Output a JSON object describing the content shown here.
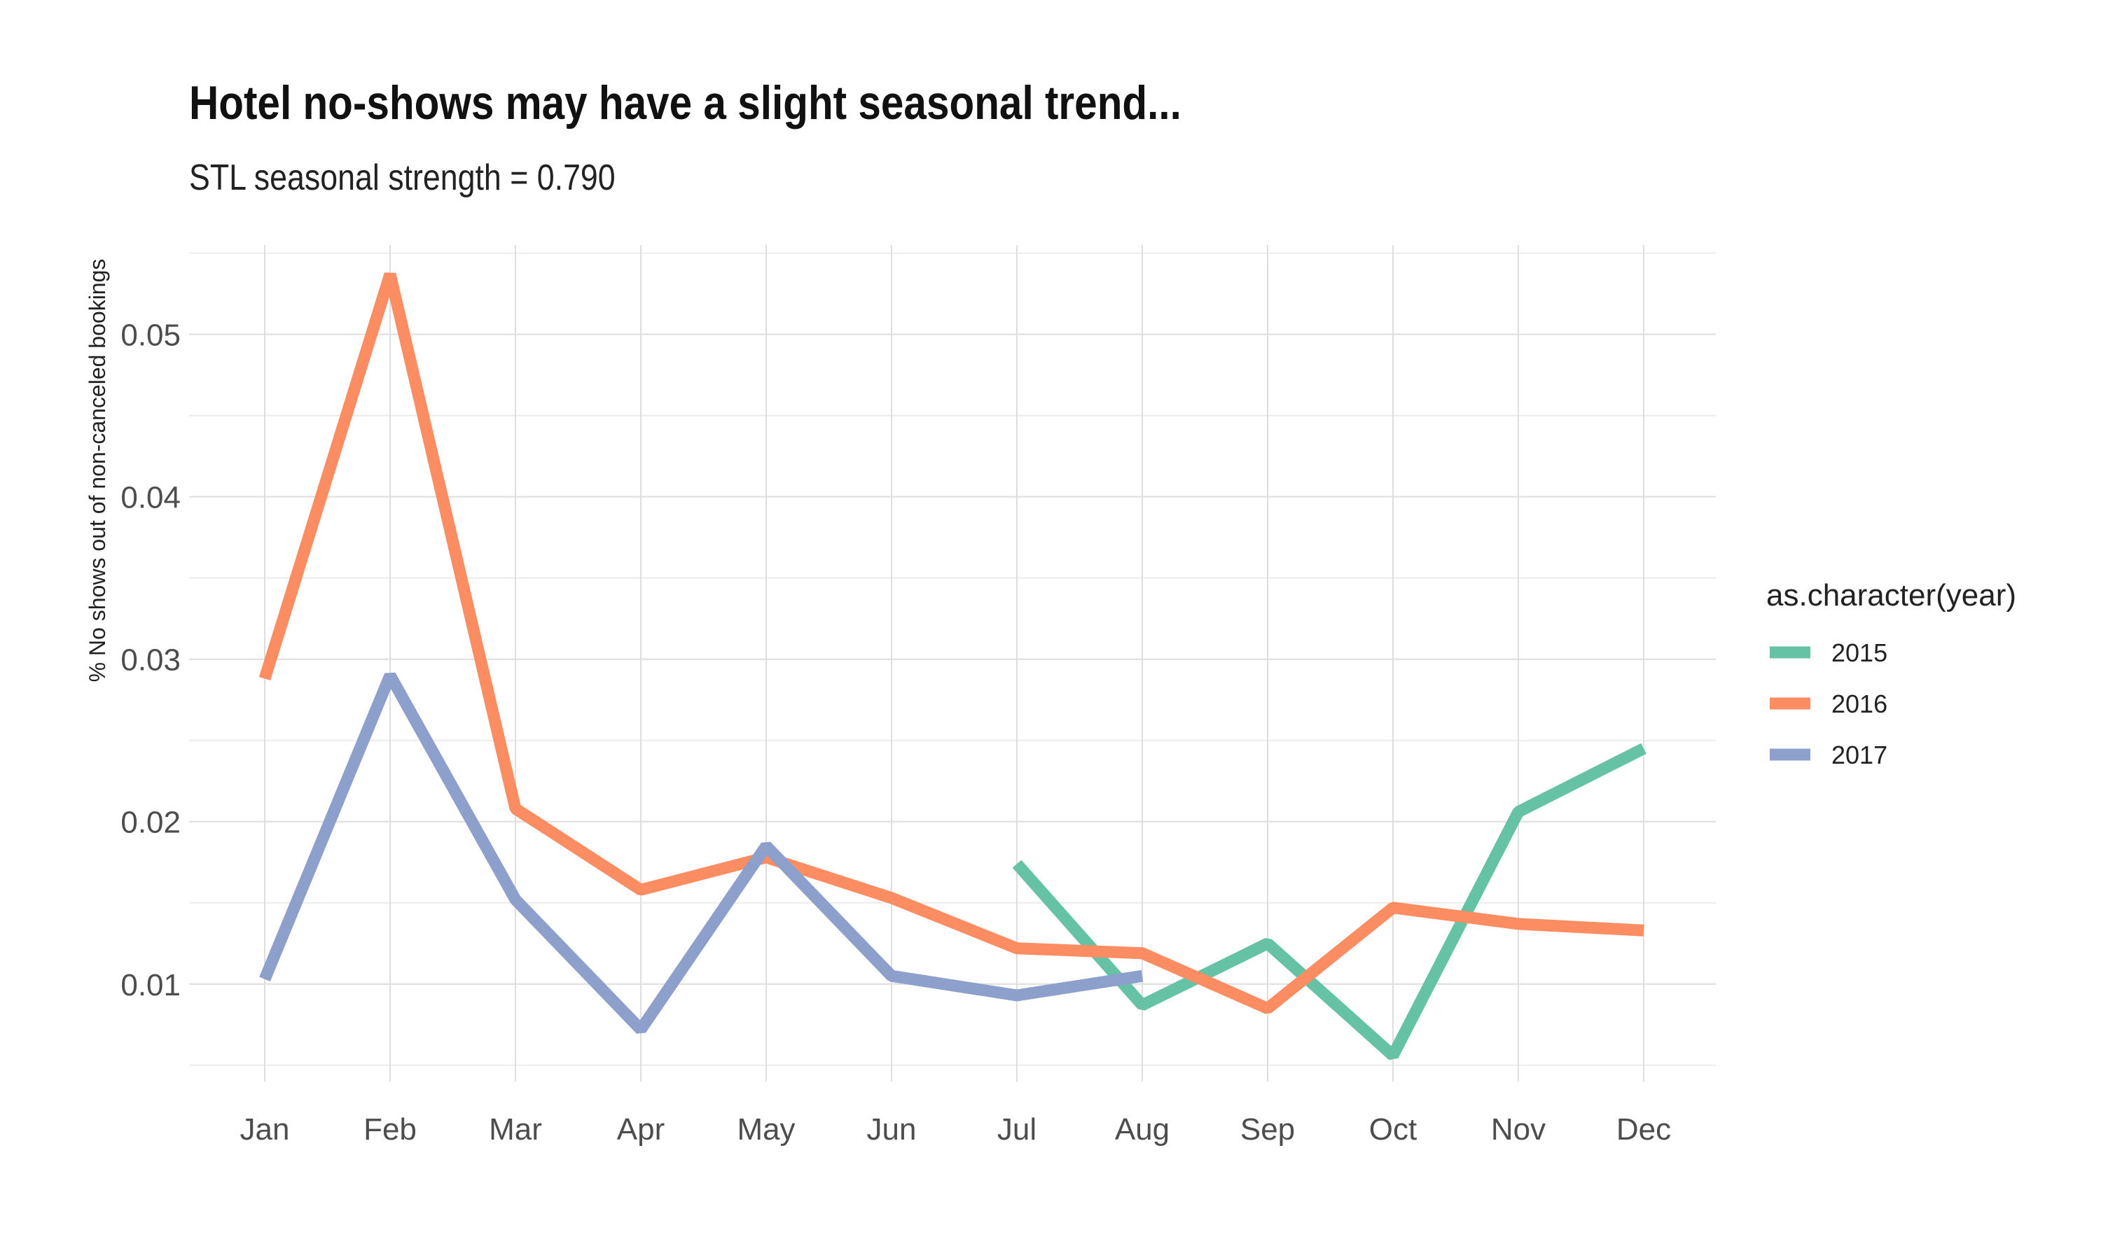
{
  "chart_data": {
    "type": "line",
    "title": "Hotel no-shows may have a slight seasonal trend...",
    "subtitle": "STL seasonal strength = 0.790",
    "xlabel": "",
    "ylabel": "% No shows out of non-canceled bookings",
    "categories": [
      "Jan",
      "Feb",
      "Mar",
      "Apr",
      "May",
      "Jun",
      "Jul",
      "Aug",
      "Sep",
      "Oct",
      "Nov",
      "Dec"
    ],
    "yticks": [
      0.01,
      0.02,
      0.03,
      0.04,
      0.05
    ],
    "ytick_labels": [
      "0.01",
      "0.02",
      "0.03",
      "0.04",
      "0.05"
    ],
    "ylim": [
      0.004,
      0.0555
    ],
    "grid": true,
    "legend": {
      "title": "as.character(year)",
      "position": "right"
    },
    "series": [
      {
        "name": "2015",
        "color": "#66C2A5",
        "values": [
          null,
          null,
          null,
          null,
          null,
          null,
          0.0174,
          0.0087,
          0.0125,
          0.0056,
          0.0206,
          0.0245
        ]
      },
      {
        "name": "2016",
        "color": "#FC8D62",
        "values": [
          0.0288,
          0.0537,
          0.0208,
          0.0158,
          0.0178,
          0.0153,
          0.0122,
          0.0119,
          0.0085,
          0.0147,
          0.0137,
          0.0133
        ]
      },
      {
        "name": "2017",
        "color": "#8DA0CB",
        "values": [
          0.0103,
          0.029,
          0.0152,
          0.0072,
          0.0185,
          0.0105,
          0.0093,
          0.0105,
          null,
          null,
          null,
          null
        ]
      }
    ]
  }
}
